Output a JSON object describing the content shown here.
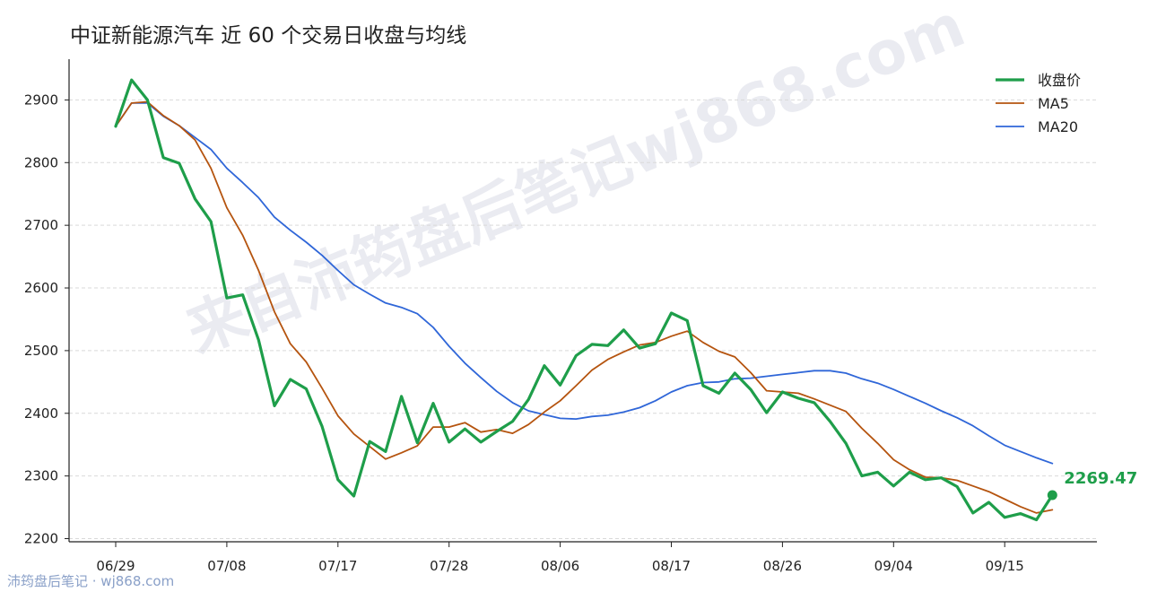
{
  "colors": {
    "close": "#1e9e4a",
    "ma5": "#b5540f",
    "ma20": "#2f66d8",
    "grid": "#d9d9d9",
    "axis": "#222222"
  },
  "watermark_center": "来自沛筠盘后笔记wj868.com",
  "watermark_footer": "沛筠盘后笔记 · wj868.com",
  "chart_data": {
    "type": "line",
    "title": "中证新能源汽车 近 60 个交易日收盘与均线",
    "xlabel": "",
    "ylabel": "",
    "ylim": [
      2195,
      2965
    ],
    "yticks": [
      2200,
      2300,
      2400,
      2500,
      2600,
      2700,
      2800,
      2900
    ],
    "xtick_labels": [
      "06/29",
      "07/08",
      "07/17",
      "07/28",
      "08/06",
      "08/17",
      "08/26",
      "09/04",
      "09/15"
    ],
    "xtick_index": [
      0,
      7,
      14,
      21,
      28,
      35,
      42,
      49,
      56
    ],
    "grid": "horizontal dashed",
    "legend_position": "top-right",
    "x_count": 60,
    "last_value_label": "2269.47",
    "series": [
      {
        "name": "收盘价",
        "values": [
          2858,
          2932,
          2900,
          2808,
          2799,
          2742,
          2706,
          2584,
          2589,
          2517,
          2412,
          2454,
          2439,
          2379,
          2294,
          2268,
          2355,
          2339,
          2427,
          2353,
          2416,
          2354,
          2375,
          2354,
          2371,
          2387,
          2422,
          2476,
          2445,
          2492,
          2510,
          2508,
          2533,
          2504,
          2511,
          2560,
          2548,
          2444,
          2432,
          2464,
          2438,
          2401,
          2434,
          2424,
          2417,
          2387,
          2352,
          2300,
          2306,
          2284,
          2306,
          2294,
          2297,
          2283,
          2241,
          2258,
          2234,
          2240,
          2230,
          2269.47
        ]
      },
      {
        "name": "MA5",
        "values": [
          2858,
          2895,
          2897,
          2875,
          2859,
          2836,
          2791,
          2728,
          2684,
          2628,
          2562,
          2511,
          2482,
          2440,
          2396,
          2367,
          2347,
          2327,
          2337,
          2348,
          2378,
          2378,
          2385,
          2370,
          2374,
          2368,
          2382,
          2402,
          2420,
          2444,
          2469,
          2486,
          2498,
          2509,
          2513,
          2523,
          2531,
          2513,
          2499,
          2490,
          2465,
          2436,
          2434,
          2432,
          2423,
          2413,
          2403,
          2376,
          2352,
          2326,
          2310,
          2298,
          2297,
          2293,
          2284,
          2275,
          2263,
          2251,
          2241,
          2246
        ]
      },
      {
        "name": "MA20",
        "values": [
          2858,
          2895,
          2895,
          2874,
          2859,
          2840,
          2821,
          2791,
          2768,
          2744,
          2713,
          2692,
          2673,
          2652,
          2628,
          2605,
          2590,
          2576,
          2569,
          2559,
          2537,
          2507,
          2480,
          2457,
          2435,
          2417,
          2404,
          2398,
          2392,
          2391,
          2395,
          2397,
          2402,
          2409,
          2420,
          2434,
          2444,
          2449,
          2450,
          2455,
          2456,
          2459,
          2462,
          2465,
          2468,
          2468,
          2464,
          2455,
          2448,
          2438,
          2427,
          2416,
          2404,
          2393,
          2380,
          2364,
          2349,
          2339,
          2329,
          2320
        ]
      }
    ]
  }
}
